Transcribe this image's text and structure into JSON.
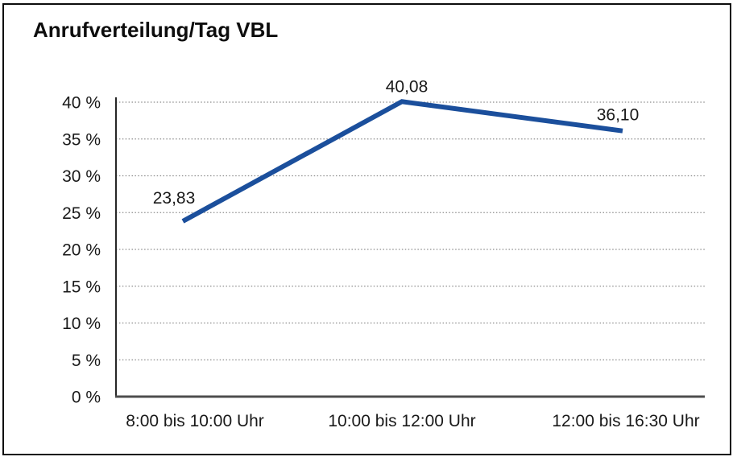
{
  "window": {
    "background_color": "#ffffff",
    "frame_border_color": "#0d0d0d"
  },
  "chart_data": {
    "type": "line",
    "title": "Anrufverteilung/Tag VBL",
    "categories": [
      "8:00 bis 10:00 Uhr",
      "10:00 bis 12:00 Uhr",
      "12:00 bis 16:30 Uhr"
    ],
    "series": [
      {
        "values": [
          23.83,
          40.08,
          36.1
        ],
        "value_labels": [
          "23,83",
          "40,08",
          "36,10"
        ],
        "line_color": "#1b4f9c"
      }
    ],
    "xlabel": "",
    "ylabel": "",
    "ylim": [
      0,
      40
    ],
    "y_ticks": [
      0,
      5,
      10,
      15,
      20,
      25,
      30,
      35,
      40
    ],
    "y_tick_suffix": " %",
    "grid": "horizontal-dotted",
    "grid_color": "#8c8c8c",
    "axis_color": "#4d4d4d",
    "legend": "none"
  }
}
